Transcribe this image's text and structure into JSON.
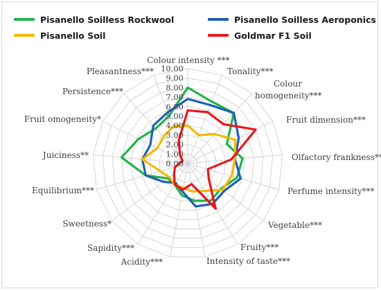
{
  "chart_data": {
    "type": "radar",
    "r_max": 10,
    "r_ticks": [
      "0.00",
      "1.00",
      "2.00",
      "3.00",
      "4.00",
      "5.00",
      "6.00",
      "7.00",
      "8.00",
      "9.00",
      "10.00"
    ],
    "axes": [
      "Colour intensity ***",
      "Tonality***",
      "Colour homogeneity***",
      "Fruit dimension***",
      "Olfactory frankness**",
      "Perfume intensity***",
      "Vegetable***",
      "Fruity***",
      "Intensity of taste***",
      "Acidity***",
      "Sapidity***",
      "Sweetness*",
      "Equilibrium***",
      "Juiciness**",
      "Fruit omogeneity*",
      "Persistence***",
      "Pleasantness***"
    ],
    "series": [
      {
        "name": "Pisanello Soilless Rockwool",
        "color": "#22b24c",
        "values": [
          8.0,
          7.0,
          7.2,
          4.6,
          5.8,
          5.4,
          4.4,
          4.6,
          4.0,
          3.4,
          2.6,
          2.6,
          4.6,
          7.0,
          5.8,
          5.0,
          5.4
        ]
      },
      {
        "name": "Pisanello Soilless Aeroponics",
        "color": "#1f5fb4",
        "values": [
          6.8,
          6.6,
          7.2,
          6.0,
          5.0,
          5.8,
          4.8,
          5.0,
          4.6,
          3.0,
          2.4,
          3.2,
          4.6,
          4.8,
          4.4,
          5.4,
          5.8
        ]
      },
      {
        "name": "Pisanello Soil",
        "color": "#f5b800",
        "values": [
          4.0,
          3.2,
          4.2,
          5.6,
          5.0,
          4.8,
          4.6,
          3.4,
          3.0,
          2.6,
          2.6,
          2.4,
          3.0,
          4.8,
          3.6,
          3.8,
          4.2
        ]
      },
      {
        "name": "Goldmar F1  Soil",
        "color": "#e8161b",
        "values": [
          5.6,
          5.8,
          5.6,
          8.0,
          4.6,
          2.2,
          2.8,
          5.6,
          2.2,
          2.8,
          2.6,
          1.8,
          1.4,
          0.8,
          0.6,
          1.2,
          2.6
        ]
      }
    ],
    "legend_position": "top",
    "grid": true
  }
}
